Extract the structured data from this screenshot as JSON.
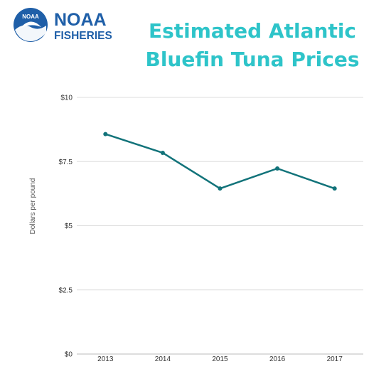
{
  "logo": {
    "emblem_text": "NOAA",
    "line1": "NOAA",
    "line2": "FISHERIES",
    "brand_color": "#1f5fa8"
  },
  "chart_data": {
    "type": "line",
    "title_lines": [
      "Estimated Atlantic",
      "Bluefin Tuna Prices"
    ],
    "ylabel": "Dollars per pound",
    "xlabel": "",
    "categories": [
      "2013",
      "2014",
      "2015",
      "2016",
      "2017"
    ],
    "series": [
      {
        "values": [
          8.57,
          7.84,
          6.45,
          7.23,
          6.45
        ],
        "color": "#12737a"
      }
    ],
    "ylim": [
      0,
      10
    ],
    "yticks": [
      0,
      2.5,
      5,
      7.5,
      10
    ],
    "ytick_labels": [
      "$0",
      "$2.5",
      "$5",
      "$7.5",
      "$10"
    ],
    "grid": true,
    "title_color": "#2ec4c9"
  }
}
